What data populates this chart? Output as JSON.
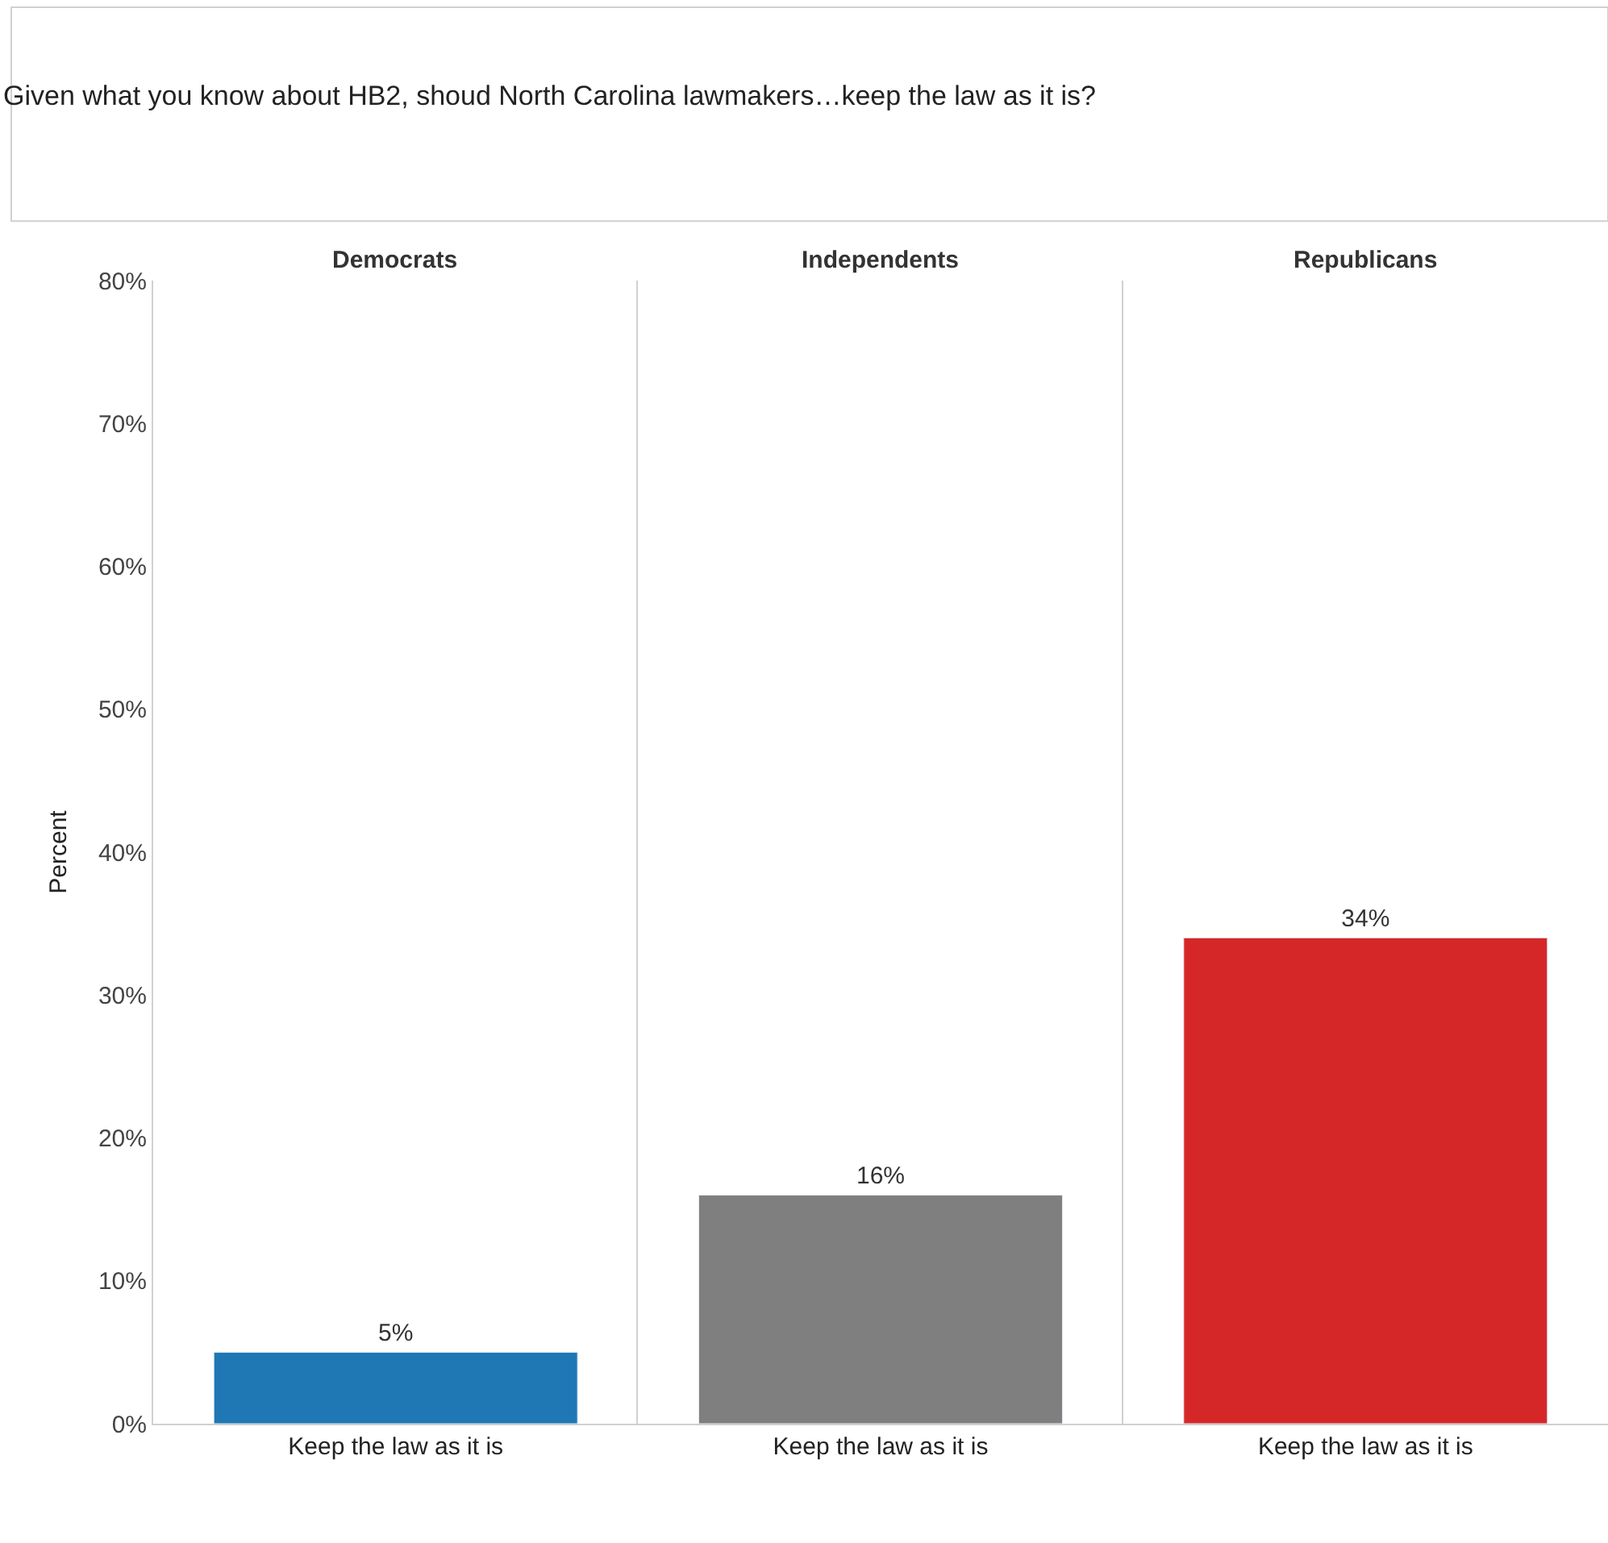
{
  "chart_data": [
    {
      "type": "bar",
      "title": "Democrats",
      "annotations": [
        "Given what you know about HB2, shoud North Carolina lawmakers…keep the law as it is?"
      ],
      "ylabel": "Percent",
      "categories": [
        "Keep the law as it is"
      ],
      "values": [
        5
      ],
      "value_labels": [
        "5%"
      ],
      "color": "#1f77b4",
      "ylim": [
        0,
        80
      ],
      "yticks": [
        {
          "value": 0,
          "label": "0%"
        },
        {
          "value": 10,
          "label": "10%"
        },
        {
          "value": 20,
          "label": "20%"
        },
        {
          "value": 30,
          "label": "30%"
        },
        {
          "value": 40,
          "label": "40%"
        },
        {
          "value": 50,
          "label": "50%"
        },
        {
          "value": 60,
          "label": "60%"
        },
        {
          "value": 70,
          "label": "70%"
        },
        {
          "value": 80,
          "label": "80%"
        }
      ]
    },
    {
      "type": "bar",
      "title": "Independents",
      "categories": [
        "Keep the law as it is"
      ],
      "values": [
        16
      ],
      "value_labels": [
        "16%"
      ],
      "color": "#7f7f7f",
      "ylim": [
        0,
        80
      ],
      "tick_labels": "x"
    },
    {
      "type": "bar",
      "title": "Republicans",
      "categories": [
        "Keep the law as it is"
      ],
      "values": [
        34
      ],
      "value_labels": [
        "34%"
      ],
      "color": "#d62728",
      "ylim": [
        0,
        80
      ],
      "tick_labels": "x"
    }
  ]
}
